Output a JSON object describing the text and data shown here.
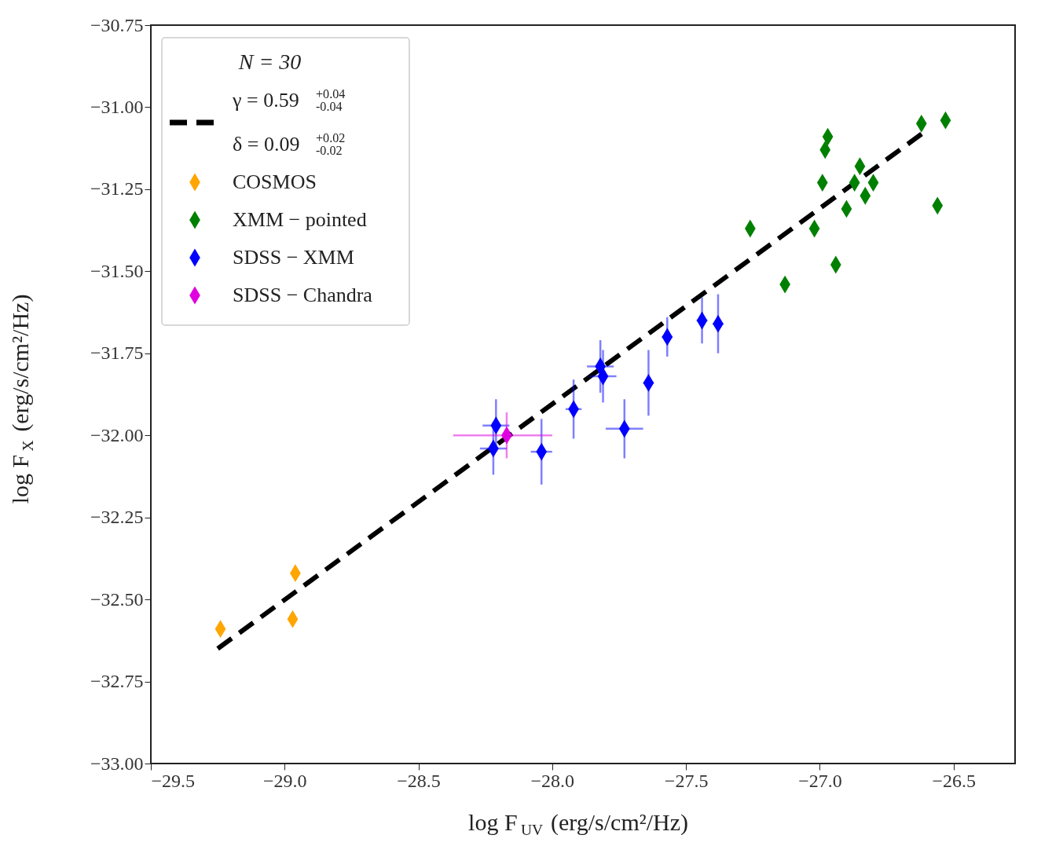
{
  "chart_data": {
    "type": "scatter",
    "xlabel": "log F$_{UV}$ (erg/s/cm²/Hz)",
    "ylabel": "log F$_{X}$ (erg/s/cm²/Hz)",
    "xlim": [
      -29.5,
      -26.27
    ],
    "ylim": [
      -33.0,
      -30.75
    ],
    "xticks": [
      {
        "value": -29.5,
        "label": "−29.5"
      },
      {
        "value": -29.0,
        "label": "−29.0"
      },
      {
        "value": -28.5,
        "label": "−28.5"
      },
      {
        "value": -28.0,
        "label": "−28.0"
      },
      {
        "value": -27.5,
        "label": "−27.5"
      },
      {
        "value": -27.0,
        "label": "−27.0"
      },
      {
        "value": -26.5,
        "label": "−26.5"
      }
    ],
    "yticks": [
      {
        "value": -33.0,
        "label": "−33.00"
      },
      {
        "value": -32.75,
        "label": "−32.75"
      },
      {
        "value": -32.5,
        "label": "−32.50"
      },
      {
        "value": -32.25,
        "label": "−32.25"
      },
      {
        "value": -32.0,
        "label": "−32.00"
      },
      {
        "value": -31.75,
        "label": "−31.75"
      },
      {
        "value": -31.5,
        "label": "−31.50"
      },
      {
        "value": -31.25,
        "label": "−31.25"
      },
      {
        "value": -31.0,
        "label": "−31.00"
      },
      {
        "value": -30.75,
        "label": "−30.75"
      }
    ],
    "grid": false,
    "legend": "top left",
    "legend_title": "N = 30",
    "marker": "diamond",
    "series": [
      {
        "name": "γ = 0.59$^{+0.04}$$_{-0.04}$\nδ = 0.09$^{+0.02}$$_{-0.02}$",
        "type": "line",
        "line_style": "dashed",
        "marker": "none",
        "color": "#000000",
        "x": [
          -29.25,
          -26.6
        ],
        "values": [
          -32.65,
          -31.07
        ]
      },
      {
        "name": "COSMOS",
        "type": "scatter",
        "color": "#ffa500",
        "x": [
          -29.24,
          -28.96,
          -28.97
        ],
        "values": [
          -32.59,
          -32.42,
          -32.56
        ]
      },
      {
        "name": "XMM − pointed",
        "type": "scatter",
        "color": "#008000",
        "x": [
          -27.26,
          -27.13,
          -27.02,
          -26.99,
          -26.97,
          -26.98,
          -26.94,
          -26.9,
          -26.87,
          -26.85,
          -26.83,
          -26.8,
          -26.62,
          -26.53,
          -26.56
        ],
        "values": [
          -31.37,
          -31.54,
          -31.37,
          -31.23,
          -31.09,
          -31.13,
          -31.48,
          -31.31,
          -31.23,
          -31.18,
          -31.27,
          -31.23,
          -31.05,
          -31.04,
          -31.3
        ]
      },
      {
        "name": "SDSS − XMM",
        "type": "scatter",
        "color": "#0000ff",
        "x": [
          -28.21,
          -28.22,
          -28.04,
          -27.92,
          -27.82,
          -27.81,
          -27.73,
          -27.64,
          -27.57,
          -27.44,
          -27.38
        ],
        "values": [
          -31.97,
          -32.04,
          -32.05,
          -31.92,
          -31.79,
          -31.82,
          -31.98,
          -31.84,
          -31.7,
          -31.65,
          -31.66
        ],
        "errors": [
          0.08,
          0.08,
          0.1,
          0.09,
          0.08,
          0.08,
          0.09,
          0.1,
          0.06,
          0.07,
          0.09
        ],
        "xerrors": [
          0.05,
          0.05,
          0.04,
          0.03,
          0.05,
          0.05,
          0.07,
          0.02,
          0.02,
          0.02,
          0.02
        ]
      },
      {
        "name": "SDSS − Chandra",
        "type": "scatter",
        "color": "#e000e0",
        "x": [
          -28.17
        ],
        "values": [
          -32.0
        ],
        "errors": [
          0.07
        ],
        "xerrors": [
          [
            -28.37,
            -28.0
          ]
        ]
      }
    ]
  }
}
